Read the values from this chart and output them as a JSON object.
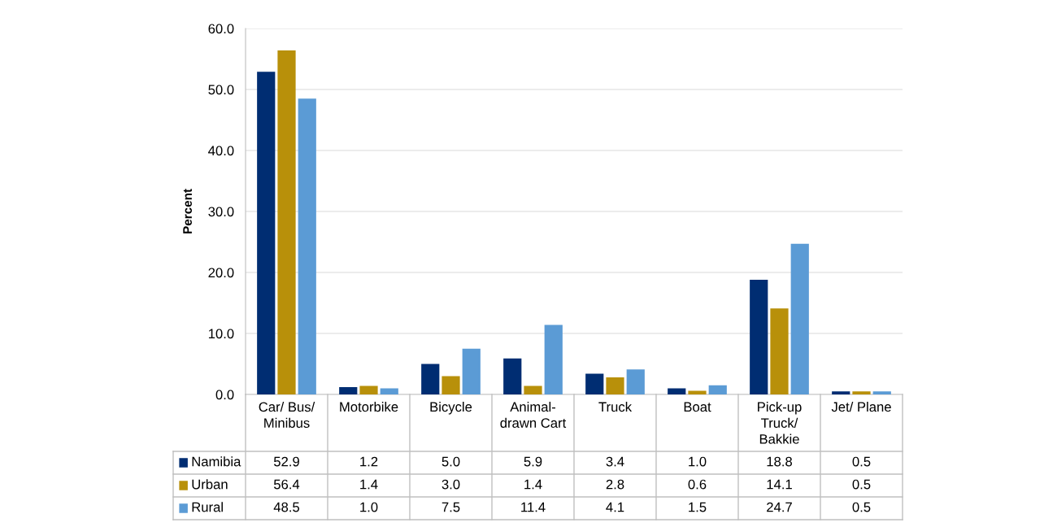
{
  "chart_data": {
    "type": "bar",
    "ylabel": "Percent",
    "categories": [
      "Car/ Bus/ Minibus",
      "Motorbike",
      "Bicycle",
      "Animal-drawn Cart",
      "Truck",
      "Boat",
      "Pick-up Truck/ Bakkie",
      "Jet/ Plane"
    ],
    "series": [
      {
        "name": "Namibia",
        "color": "#002d72",
        "values": [
          52.9,
          1.2,
          5.0,
          5.9,
          3.4,
          1.0,
          18.8,
          0.5
        ],
        "value_labels": [
          "52.9",
          "1.2",
          "5.0",
          "5.9",
          "3.4",
          "1.0",
          "18.8",
          "0.5"
        ]
      },
      {
        "name": "Urban",
        "color": "#b8900a",
        "values": [
          56.4,
          1.4,
          3.0,
          1.4,
          2.8,
          0.6,
          14.1,
          0.5
        ],
        "value_labels": [
          "56.4",
          "1.4",
          "3.0",
          "1.4",
          "2.8",
          "0.6",
          "14.1",
          "0.5"
        ]
      },
      {
        "name": "Rural",
        "color": "#5b9bd5",
        "values": [
          48.5,
          1.0,
          7.5,
          11.4,
          4.1,
          1.5,
          24.7,
          0.5
        ],
        "value_labels": [
          "48.5",
          "1.0",
          "7.5",
          "11.4",
          "4.1",
          "1.5",
          "24.7",
          "0.5"
        ]
      }
    ],
    "ylim": [
      0,
      60
    ],
    "yticks": [
      {
        "value": 0,
        "label": "0.0"
      },
      {
        "value": 10,
        "label": "10.0"
      },
      {
        "value": 20,
        "label": "20.0"
      },
      {
        "value": 30,
        "label": "30.0"
      },
      {
        "value": 40,
        "label": "40.0"
      },
      {
        "value": 50,
        "label": "50.0"
      },
      {
        "value": 60,
        "label": "60.0"
      }
    ],
    "grid": "y",
    "legend": "bottom"
  }
}
